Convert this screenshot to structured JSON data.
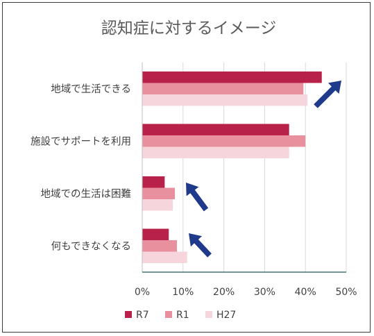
{
  "chart_data": {
    "type": "bar",
    "orientation": "horizontal",
    "title": "認知症に対するイメージ",
    "categories": [
      "地域で生活できる",
      "施設でサポートを利用",
      "地域での生活は困難",
      "何もできなくなる"
    ],
    "series": [
      {
        "name": "R7",
        "color": "#b8214a",
        "values": [
          44,
          36,
          5.5,
          6.5
        ]
      },
      {
        "name": "R1",
        "color": "#e8909e",
        "values": [
          39.5,
          40,
          8,
          8.5
        ]
      },
      {
        "name": "H27",
        "color": "#f7d5dd",
        "values": [
          40.5,
          36,
          7.5,
          11
        ]
      }
    ],
    "xlim": [
      0,
      50
    ],
    "xticks": [
      "0%",
      "10%",
      "20%",
      "30%",
      "40%",
      "50%"
    ],
    "grid": true,
    "legend_position": "bottom",
    "annotations": [
      {
        "type": "arrow",
        "color": "#1f3a8a",
        "direction": "up-right",
        "category": "地域で生活できる"
      },
      {
        "type": "arrow",
        "color": "#1f3a8a",
        "direction": "up-left",
        "category": "地域での生活は困難"
      },
      {
        "type": "arrow",
        "color": "#1f3a8a",
        "direction": "up-left",
        "category": "何もできなくなる"
      }
    ]
  }
}
